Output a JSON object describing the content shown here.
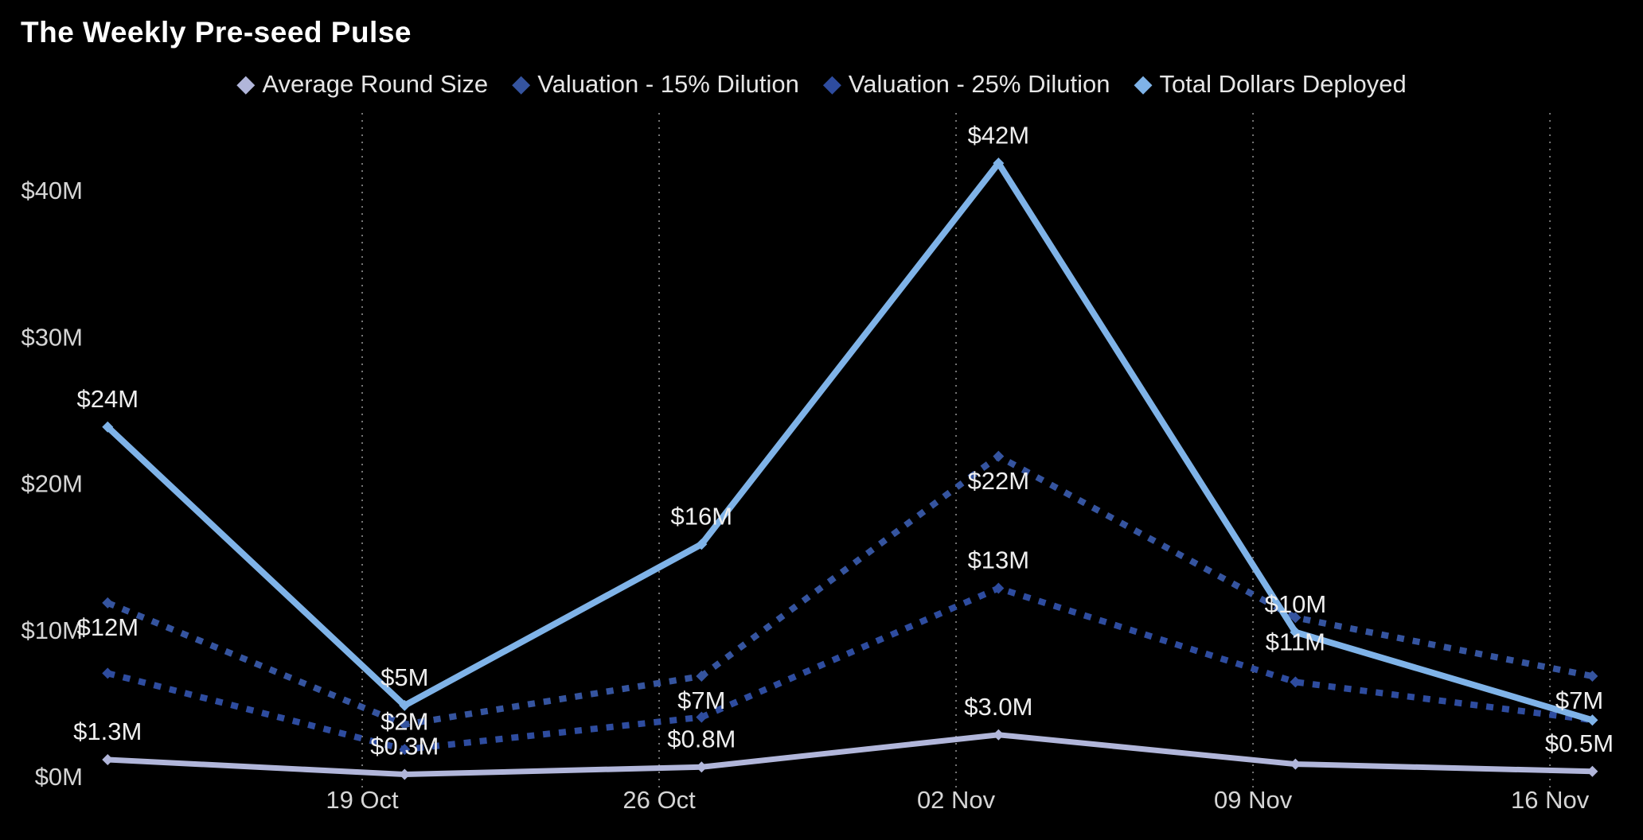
{
  "header": {
    "title": "The Weekly Pre-seed Pulse"
  },
  "colors": {
    "background": "#000000",
    "title_text": "#FFFFFF",
    "axis_text": "#D5D5D5",
    "data_label_text": "#EFEFEF",
    "gridline": "#8A8A8A"
  },
  "chart_data": {
    "type": "line",
    "title": "The Weekly Pre-seed Pulse",
    "legend_position": "top-center",
    "grid": "vertical-dotted",
    "x_axis": {
      "tick_labels": [
        "19 Oct",
        "26 Oct",
        "02 Nov",
        "09 Nov",
        "16 Nov"
      ],
      "tick_days": [
        6,
        13,
        20,
        27,
        34
      ]
    },
    "y_axis": {
      "tick_labels": [
        "$0M",
        "$10M",
        "$20M",
        "$30M",
        "$40M"
      ],
      "tick_values": [
        0,
        10,
        20,
        30,
        40
      ],
      "range": [
        0,
        45.5
      ]
    },
    "point_days": [
      0,
      7,
      14,
      21,
      28,
      35
    ],
    "series": [
      {
        "name": "Average Round Size",
        "style": "solid",
        "color": "#B1B6DA",
        "values": [
          1.3,
          0.3,
          0.8,
          3.0,
          1.0,
          0.5
        ],
        "labels": [
          "$1.3M",
          "$0.3M",
          "$0.8M",
          "$3.0M",
          null,
          "$0.5M"
        ],
        "label_side": "above"
      },
      {
        "name": "Valuation - 15% Dilution",
        "style": "dotted",
        "color": "#35549F",
        "values": [
          12,
          3.7,
          7,
          22,
          11,
          7
        ],
        "labels": [
          "$12M",
          null,
          "$7M",
          "$22M",
          "$11M",
          "$7M"
        ],
        "label_side": "below"
      },
      {
        "name": "Valuation - 25% Dilution",
        "style": "dotted",
        "color": "#2E4C9F",
        "values": [
          7.2,
          2,
          4.2,
          13,
          6.6,
          4
        ],
        "labels": [
          null,
          "$2M",
          null,
          "$13M",
          null,
          null
        ],
        "label_side": "above"
      },
      {
        "name": "Total Dollars Deployed",
        "style": "solid",
        "color": "#7FB3E8",
        "values": [
          24,
          5,
          16,
          42,
          10,
          4
        ],
        "labels": [
          "$24M",
          "$5M",
          "$16M",
          "$42M",
          "$10M",
          null
        ],
        "label_side": "above"
      }
    ]
  }
}
